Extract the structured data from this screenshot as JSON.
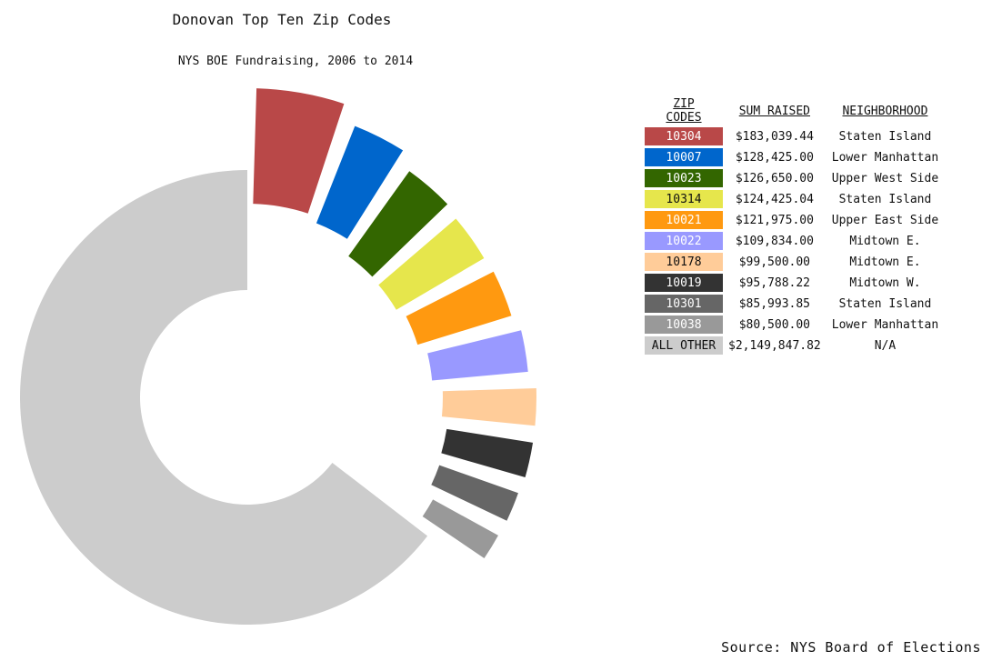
{
  "chart_data": {
    "type": "pie",
    "title": "Donovan Top Ten Zip Codes",
    "subtitle": "NYS BOE Fundraising, 2006 to 2014",
    "source": "Source: NYS Board of Elections",
    "legend_headers": {
      "zip": "ZIP CODES",
      "sum": "SUM RAISED",
      "neighborhood": "NEIGHBORHOOD"
    },
    "slices": [
      {
        "zip": "10304",
        "sum_label": "$183,039.44",
        "value": 183039.44,
        "neighborhood": "Staten Island",
        "color": "#b94848"
      },
      {
        "zip": "10007",
        "sum_label": "$128,425.00",
        "value": 128425.0,
        "neighborhood": "Lower Manhattan",
        "color": "#0066cc"
      },
      {
        "zip": "10023",
        "sum_label": "$126,650.00",
        "value": 126650.0,
        "neighborhood": "Upper West Side",
        "color": "#336600"
      },
      {
        "zip": "10314",
        "sum_label": "$124,425.04",
        "value": 124425.04,
        "neighborhood": "Staten Island",
        "color": "#e6e64c"
      },
      {
        "zip": "10021",
        "sum_label": "$121,975.00",
        "value": 121975.0,
        "neighborhood": "Upper East Side",
        "color": "#ff9910"
      },
      {
        "zip": "10022",
        "sum_label": "$109,834.00",
        "value": 109834.0,
        "neighborhood": "Midtown E.",
        "color": "#9999ff"
      },
      {
        "zip": "10178",
        "sum_label": "$99,500.00",
        "value": 99500.0,
        "neighborhood": "Midtown E.",
        "color": "#ffcc99"
      },
      {
        "zip": "10019",
        "sum_label": "$95,788.22",
        "value": 95788.22,
        "neighborhood": "Midtown W.",
        "color": "#333333"
      },
      {
        "zip": "10301",
        "sum_label": "$85,993.85",
        "value": 85993.85,
        "neighborhood": "Staten Island",
        "color": "#666666"
      },
      {
        "zip": "10038",
        "sum_label": "$80,500.00",
        "value": 80500.0,
        "neighborhood": "Lower Manhattan",
        "color": "#999999"
      },
      {
        "zip": "ALL OTHER",
        "sum_label": "$2,149,847.82",
        "value": 2149847.82,
        "neighborhood": "N/A",
        "color": "#cccccc"
      }
    ]
  }
}
